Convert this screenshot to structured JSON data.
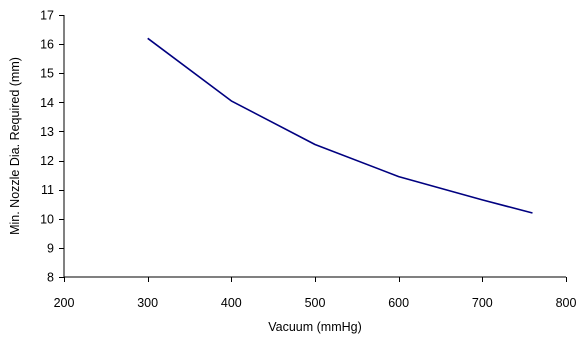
{
  "chart_data": {
    "type": "line",
    "title": "",
    "xlabel": "Vacuum (mmHg)",
    "ylabel": "Min. Nozzle Dia. Required (mm)",
    "xlim": [
      200,
      800
    ],
    "ylim": [
      8,
      17
    ],
    "xticks": [
      200,
      300,
      400,
      500,
      600,
      700,
      800
    ],
    "yticks": [
      8,
      9,
      10,
      11,
      12,
      13,
      14,
      15,
      16,
      17
    ],
    "grid": false,
    "legend": "none",
    "series": [
      {
        "color": "#000080",
        "x": [
          300,
          400,
          500,
          600,
          700,
          760
        ],
        "y": [
          16.2,
          14.05,
          12.55,
          11.45,
          10.65,
          10.2
        ]
      }
    ]
  }
}
